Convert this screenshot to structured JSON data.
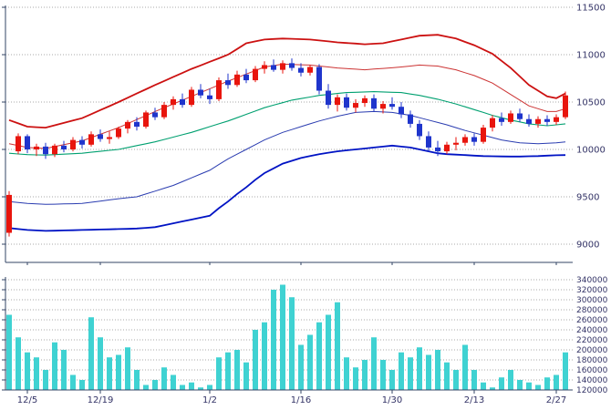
{
  "chart_data": {
    "type": "candlestick",
    "title": "",
    "panels": [
      "price-with-bollinger-bands",
      "volume"
    ],
    "price_axis": {
      "min": 9000,
      "max": 11500,
      "ticks": [
        9000,
        9500,
        10000,
        10500,
        11000,
        11500
      ],
      "side": "right"
    },
    "volume_axis": {
      "min": 120000,
      "max": 340000,
      "step": 20000,
      "ticks": [
        120000,
        140000,
        160000,
        180000,
        200000,
        220000,
        240000,
        260000,
        280000,
        300000,
        320000,
        340000
      ],
      "side": "right"
    },
    "x_ticks": [
      {
        "index": 2,
        "label": "12/5"
      },
      {
        "index": 10,
        "label": "12/19"
      },
      {
        "index": 22,
        "label": "1/2"
      },
      {
        "index": 32,
        "label": "1/16"
      },
      {
        "index": 42,
        "label": "1/30"
      },
      {
        "index": 51,
        "label": "2/13"
      },
      {
        "index": 60,
        "label": "2/27"
      }
    ],
    "grid": "dotted-horizontal",
    "legend": "none",
    "candles_ohlc": [
      [
        9120,
        9560,
        9080,
        9520
      ],
      [
        9980,
        10170,
        9950,
        10140
      ],
      [
        10140,
        10160,
        9960,
        10000
      ],
      [
        10000,
        10060,
        9930,
        10030
      ],
      [
        10030,
        10070,
        9900,
        9950
      ],
      [
        9950,
        10060,
        9920,
        10040
      ],
      [
        10040,
        10090,
        9970,
        10000
      ],
      [
        10000,
        10130,
        9980,
        10100
      ],
      [
        10100,
        10140,
        10010,
        10050
      ],
      [
        10050,
        10190,
        10030,
        10160
      ],
      [
        10160,
        10210,
        10080,
        10110
      ],
      [
        10110,
        10190,
        10060,
        10130
      ],
      [
        10130,
        10240,
        10110,
        10220
      ],
      [
        10220,
        10310,
        10170,
        10290
      ],
      [
        10290,
        10340,
        10200,
        10240
      ],
      [
        10240,
        10410,
        10220,
        10390
      ],
      [
        10390,
        10440,
        10310,
        10340
      ],
      [
        10340,
        10500,
        10320,
        10470
      ],
      [
        10470,
        10560,
        10420,
        10530
      ],
      [
        10530,
        10590,
        10440,
        10470
      ],
      [
        10470,
        10660,
        10450,
        10630
      ],
      [
        10630,
        10690,
        10540,
        10570
      ],
      [
        10570,
        10640,
        10480,
        10530
      ],
      [
        10530,
        10760,
        10510,
        10730
      ],
      [
        10730,
        10800,
        10640,
        10680
      ],
      [
        10680,
        10830,
        10660,
        10790
      ],
      [
        10790,
        10850,
        10700,
        10730
      ],
      [
        10730,
        10880,
        10710,
        10850
      ],
      [
        10850,
        10930,
        10800,
        10890
      ],
      [
        10890,
        10950,
        10820,
        10840
      ],
      [
        10840,
        10940,
        10800,
        10910
      ],
      [
        10910,
        10960,
        10830,
        10860
      ],
      [
        10860,
        10910,
        10770,
        10810
      ],
      [
        10810,
        10890,
        10780,
        10870
      ],
      [
        10870,
        10900,
        10580,
        10620
      ],
      [
        10620,
        10690,
        10430,
        10470
      ],
      [
        10470,
        10580,
        10400,
        10550
      ],
      [
        10550,
        10590,
        10410,
        10440
      ],
      [
        10440,
        10530,
        10390,
        10490
      ],
      [
        10490,
        10570,
        10450,
        10540
      ],
      [
        10540,
        10580,
        10400,
        10430
      ],
      [
        10430,
        10510,
        10380,
        10480
      ],
      [
        10480,
        10550,
        10420,
        10450
      ],
      [
        10450,
        10500,
        10330,
        10370
      ],
      [
        10370,
        10410,
        10230,
        10270
      ],
      [
        10270,
        10310,
        10100,
        10140
      ],
      [
        10140,
        10190,
        9980,
        10020
      ],
      [
        10020,
        10090,
        9930,
        9980
      ],
      [
        9980,
        10080,
        9950,
        10050
      ],
      [
        10050,
        10130,
        9990,
        10070
      ],
      [
        10070,
        10160,
        10040,
        10130
      ],
      [
        10130,
        10170,
        10040,
        10080
      ],
      [
        10080,
        10260,
        10060,
        10230
      ],
      [
        10230,
        10360,
        10190,
        10330
      ],
      [
        10330,
        10390,
        10250,
        10290
      ],
      [
        10290,
        10410,
        10270,
        10380
      ],
      [
        10380,
        10430,
        10290,
        10320
      ],
      [
        10320,
        10370,
        10240,
        10270
      ],
      [
        10270,
        10350,
        10230,
        10320
      ],
      [
        10320,
        10360,
        10250,
        10290
      ],
      [
        10290,
        10370,
        10260,
        10340
      ],
      [
        10340,
        10610,
        10320,
        10570
      ]
    ],
    "volumes": [
      270000,
      225000,
      195000,
      185000,
      160000,
      215000,
      200000,
      150000,
      140000,
      265000,
      225000,
      185000,
      190000,
      205000,
      160000,
      130000,
      140000,
      165000,
      150000,
      130000,
      135000,
      125000,
      130000,
      185000,
      195000,
      200000,
      175000,
      240000,
      255000,
      320000,
      330000,
      305000,
      210000,
      230000,
      255000,
      270000,
      295000,
      185000,
      165000,
      180000,
      225000,
      180000,
      160000,
      195000,
      185000,
      205000,
      190000,
      200000,
      175000,
      160000,
      210000,
      160000,
      135000,
      125000,
      145000,
      160000,
      140000,
      135000,
      130000,
      145000,
      150000,
      195000
    ],
    "bands": {
      "upper2": [
        10310,
        10275,
        10240,
        10235,
        10230,
        10255,
        10280,
        10305,
        10330,
        10372,
        10415,
        10457,
        10500,
        10545,
        10590,
        10635,
        10680,
        10722,
        10765,
        10807,
        10850,
        10887,
        10925,
        10962,
        11000,
        11060,
        11120,
        11140,
        11160,
        11165,
        11170,
        11167,
        11163,
        11160,
        11150,
        11140,
        11130,
        11123,
        11117,
        11110,
        11115,
        11120,
        11140,
        11160,
        11180,
        11200,
        11205,
        11210,
        11190,
        11170,
        11135,
        11100,
        11055,
        11010,
        10935,
        10860,
        10770,
        10680,
        10620,
        10560,
        10540,
        10590
      ],
      "upper1": [
        10060,
        10040,
        10020,
        10015,
        10010,
        10030,
        10050,
        10070,
        10090,
        10125,
        10160,
        10195,
        10230,
        10272,
        10315,
        10357,
        10400,
        10440,
        10480,
        10520,
        10560,
        10600,
        10640,
        10680,
        10720,
        10757,
        10795,
        10832,
        10870,
        10885,
        10900,
        10897,
        10893,
        10890,
        10880,
        10870,
        10860,
        10853,
        10847,
        10840,
        10848,
        10855,
        10862,
        10870,
        10880,
        10890,
        10885,
        10880,
        10860,
        10840,
        10810,
        10780,
        10740,
        10700,
        10640,
        10580,
        10520,
        10460,
        10430,
        10400,
        10400,
        10430
      ],
      "middle": [
        9960,
        9952,
        9945,
        9942,
        9940,
        9945,
        9950,
        9955,
        9960,
        9970,
        9980,
        9990,
        10000,
        10020,
        10040,
        10060,
        10080,
        10105,
        10130,
        10155,
        10180,
        10210,
        10240,
        10270,
        10300,
        10335,
        10370,
        10405,
        10440,
        10467,
        10493,
        10520,
        10537,
        10553,
        10570,
        10580,
        10590,
        10600,
        10603,
        10607,
        10610,
        10607,
        10603,
        10600,
        10585,
        10570,
        10550,
        10530,
        10505,
        10480,
        10450,
        10420,
        10390,
        10360,
        10335,
        10310,
        10290,
        10270,
        10260,
        10250,
        10260,
        10270
      ],
      "lower1": [
        9450,
        9440,
        9430,
        9425,
        9420,
        9422,
        9425,
        9427,
        9430,
        9442,
        9455,
        9467,
        9480,
        9490,
        9500,
        9530,
        9560,
        9590,
        9620,
        9660,
        9700,
        9740,
        9780,
        9840,
        9900,
        9950,
        10000,
        10050,
        10100,
        10140,
        10180,
        10210,
        10240,
        10270,
        10300,
        10325,
        10350,
        10370,
        10390,
        10395,
        10400,
        10395,
        10390,
        10375,
        10360,
        10335,
        10310,
        10285,
        10260,
        10230,
        10200,
        10175,
        10150,
        10125,
        10100,
        10085,
        10070,
        10065,
        10060,
        10065,
        10070,
        10080
      ],
      "lower2": [
        9170,
        9160,
        9150,
        9145,
        9140,
        9142,
        9145,
        9147,
        9150,
        9152,
        9155,
        9157,
        9160,
        9162,
        9165,
        9172,
        9180,
        9200,
        9220,
        9240,
        9260,
        9280,
        9300,
        9380,
        9450,
        9530,
        9600,
        9680,
        9750,
        9800,
        9850,
        9880,
        9910,
        9930,
        9950,
        9965,
        9980,
        9990,
        10000,
        10010,
        10020,
        10030,
        10040,
        10030,
        10020,
        10000,
        9980,
        9960,
        9950,
        9945,
        9940,
        9935,
        9930,
        9928,
        9926,
        9925,
        9925,
        9928,
        9930,
        9935,
        9938,
        9940
      ]
    },
    "colors": {
      "candle_up": "#e8150d",
      "candle_down": "#1f35cc",
      "band_upper_outer": "#cc1111",
      "band_upper_inner": "#cc3333",
      "band_middle": "#00a070",
      "band_lower_inner": "#2a3cb0",
      "band_lower_outer": "#0013c4",
      "volume_bar": "#3fd2d2",
      "grid": "#a8a8a8",
      "axis": "#334466",
      "label": "#333366"
    }
  }
}
